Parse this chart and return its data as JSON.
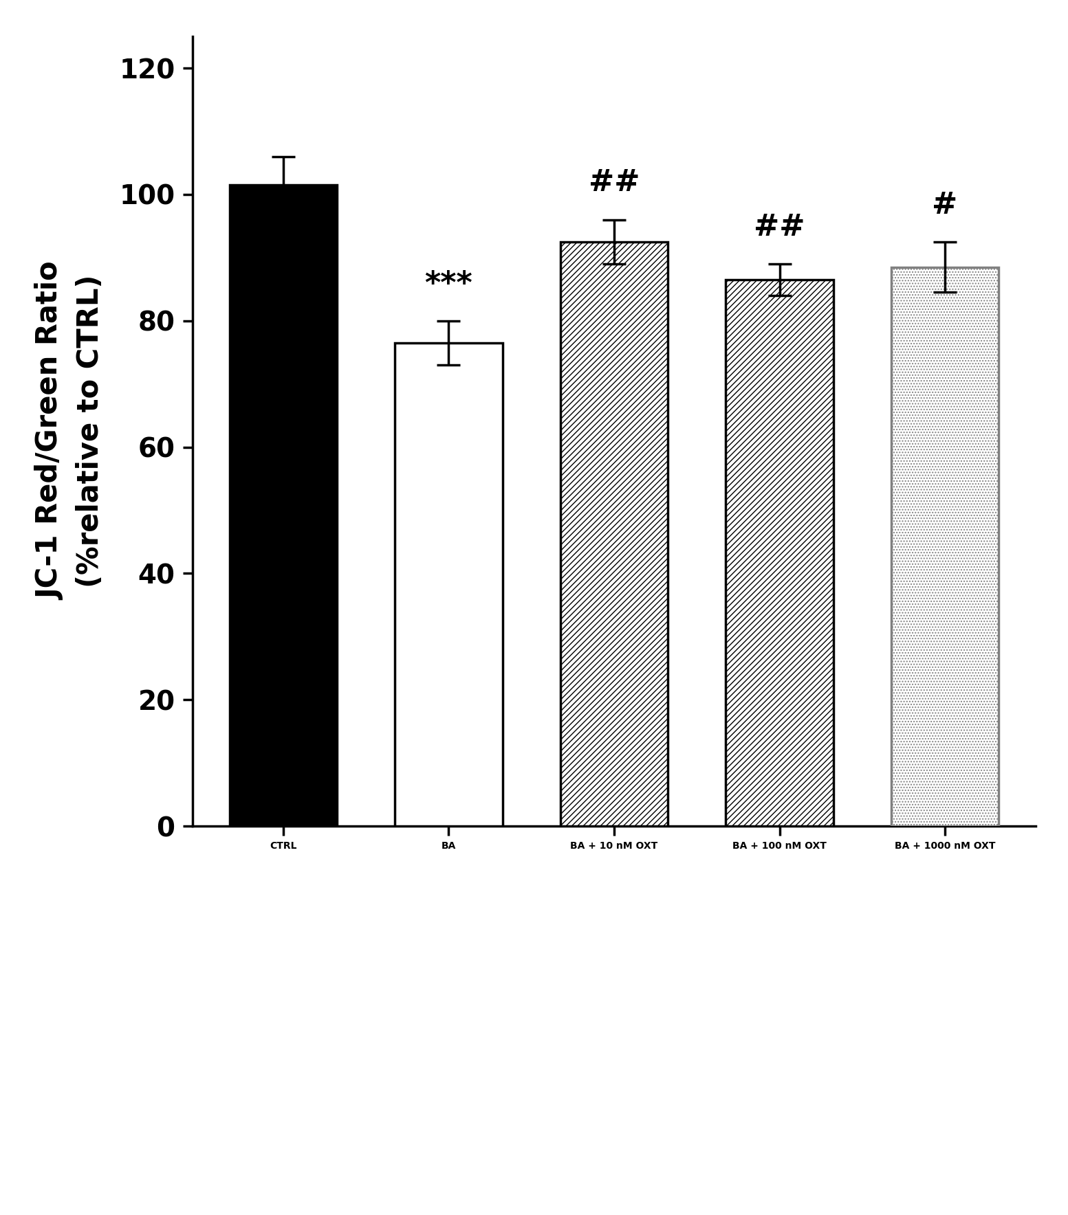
{
  "categories": [
    "CTRL",
    "BA",
    "BA + 10 nM OXT",
    "BA + 100 nM OXT",
    "BA + 1000 nM OXT"
  ],
  "values": [
    101.5,
    76.5,
    92.5,
    86.5,
    88.5
  ],
  "errors": [
    4.5,
    3.5,
    3.5,
    2.5,
    4.0
  ],
  "bar_facecolors": [
    "#000000",
    "#ffffff",
    "#ffffff",
    "#ffffff",
    "#ffffff"
  ],
  "bar_edgecolors": [
    "#000000",
    "#000000",
    "#000000",
    "#000000",
    "#808080"
  ],
  "hatch_patterns": [
    "",
    "",
    "////",
    "////",
    "...."
  ],
  "annotations": [
    "",
    "***",
    "##",
    "##",
    "#"
  ],
  "ylabel": "JC-1 Red/Green Ratio\n(%relative to CTRL)",
  "ylim": [
    0,
    125
  ],
  "yticks": [
    0,
    20,
    40,
    60,
    80,
    100,
    120
  ],
  "bar_width": 0.65,
  "figsize": [
    15.53,
    17.68
  ],
  "dpi": 100,
  "fontsize_ticks": 28,
  "fontsize_ylabel": 30,
  "fontsize_annotations": 32,
  "fontsize_xticks": 28,
  "spine_linewidth": 2.5,
  "error_capsize": 12,
  "error_linewidth": 2.5,
  "bar_linewidth": 2.5
}
